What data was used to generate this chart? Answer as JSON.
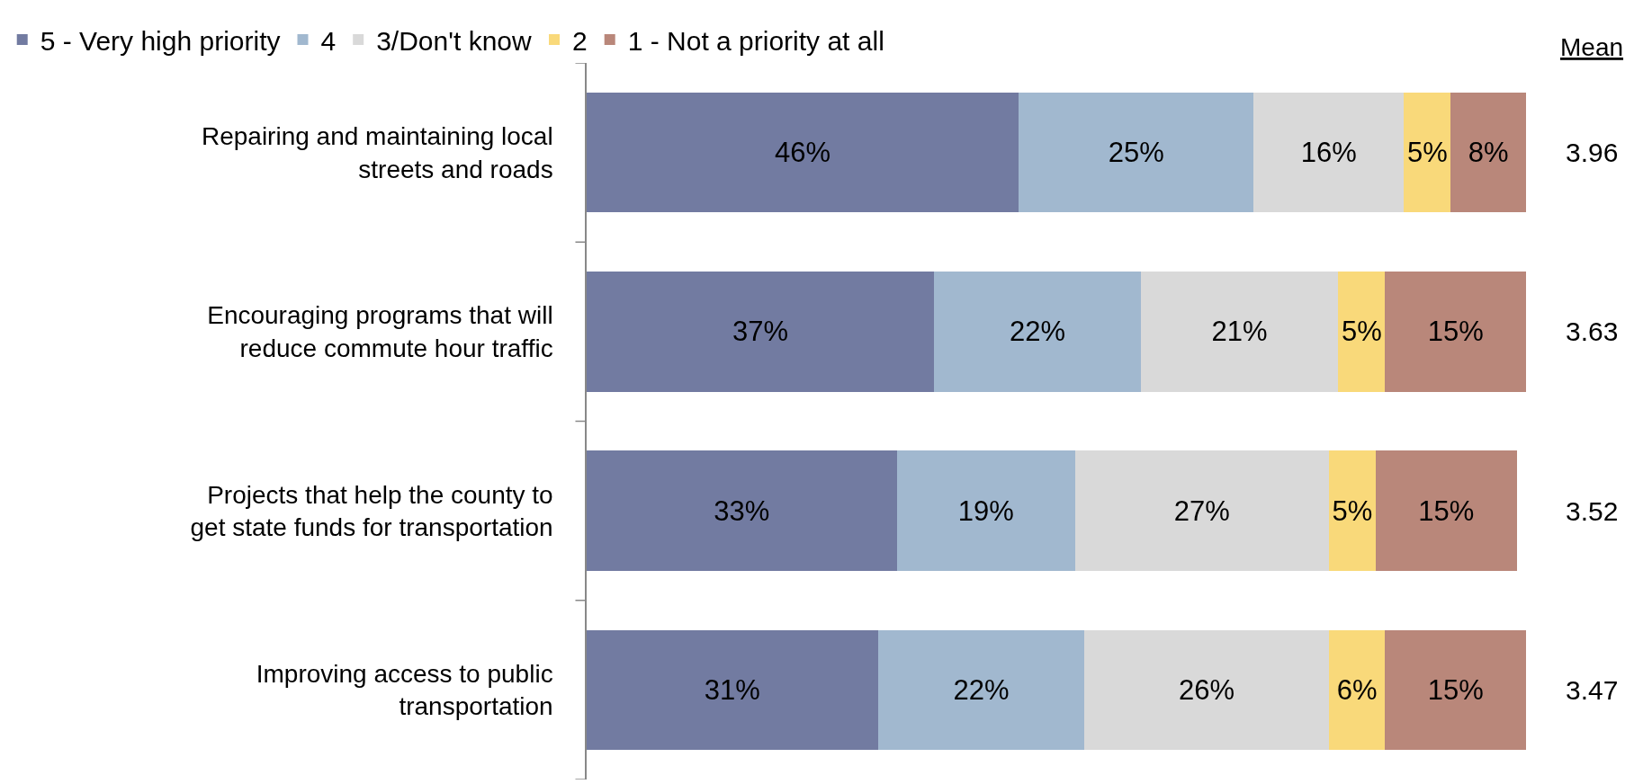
{
  "chart_data": {
    "type": "bar",
    "orientation": "horizontal",
    "stacked": true,
    "xlim": [
      0,
      100
    ],
    "tick_labels": "y",
    "legend": "top",
    "categories": [
      "Repairing and maintaining local streets and roads",
      "Encouraging programs that will reduce commute hour traffic",
      "Projects that help the county to get state funds for transportation",
      "Improving access to public transportation"
    ],
    "series": [
      {
        "name": "5 - Very high priority",
        "color": "#727ba1",
        "values": [
          46,
          37,
          33,
          31
        ],
        "value_labels": [
          "46%",
          "37%",
          "33%",
          "31%"
        ]
      },
      {
        "name": "4",
        "color": "#a1b8cf",
        "values": [
          25,
          22,
          19,
          22
        ],
        "value_labels": [
          "25%",
          "22%",
          "19%",
          "22%"
        ]
      },
      {
        "name": "3/Don't know",
        "color": "#d9d9d9",
        "values": [
          16,
          21,
          27,
          26
        ],
        "value_labels": [
          "16%",
          "21%",
          "27%",
          "26%"
        ]
      },
      {
        "name": "2",
        "color": "#f9d97a",
        "values": [
          5,
          5,
          5,
          6
        ],
        "value_labels": [
          "5%",
          "5%",
          "5%",
          "6%"
        ]
      },
      {
        "name": "1 - Not a priority at all",
        "color": "#b9877a",
        "values": [
          8,
          15,
          15,
          15
        ],
        "value_labels": [
          "8%",
          "15%",
          "15%",
          "15%"
        ]
      }
    ],
    "annotations": [
      "Mean",
      "3.96",
      "3.63",
      "3.52",
      "3.47"
    ]
  }
}
